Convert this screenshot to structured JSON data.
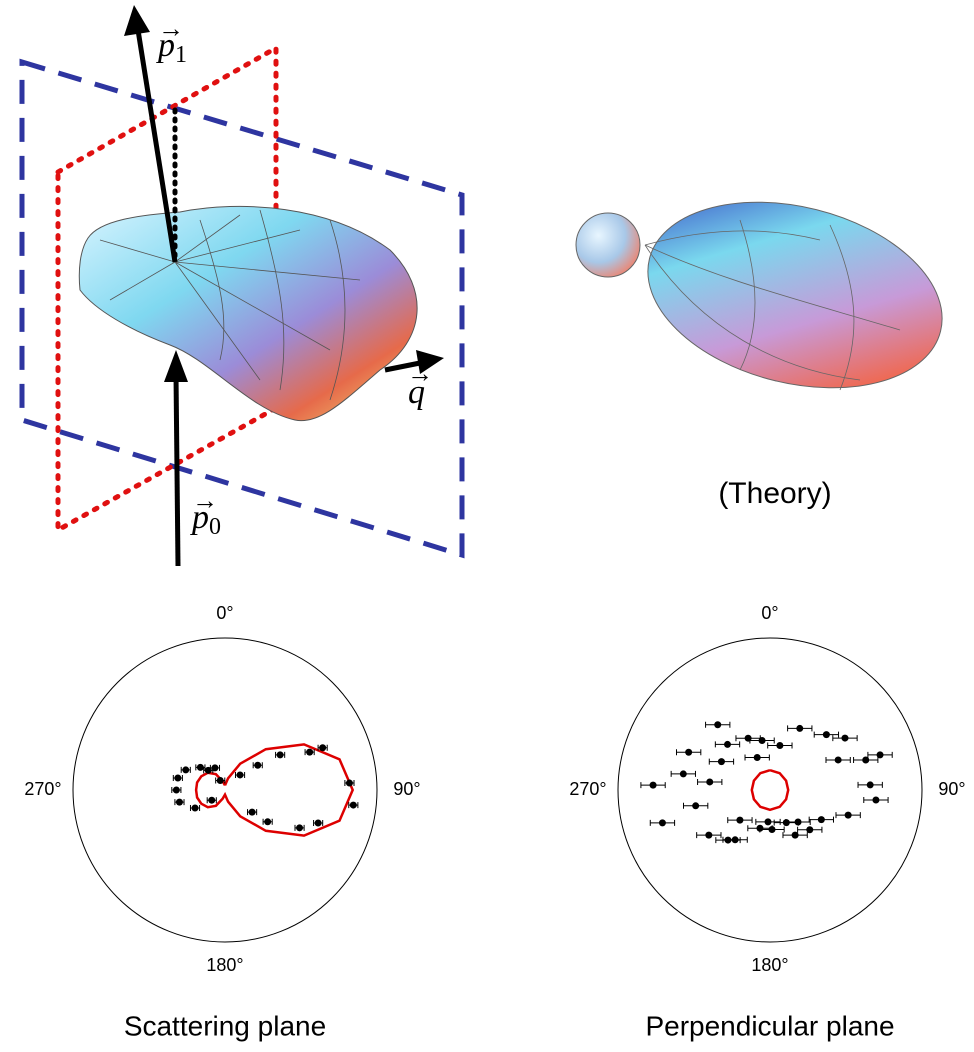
{
  "figure": {
    "p1": {
      "base": "p",
      "sub": "1"
    },
    "q": {
      "base": "q"
    },
    "p0": {
      "base": "p",
      "sub": "0"
    },
    "theory_label": "(Theory)"
  },
  "chart_data": [
    {
      "type": "polar",
      "title": "Scattering plane",
      "rlim": [
        0,
        1
      ],
      "angle_ticks": [
        {
          "value": 0,
          "label": "0°"
        },
        {
          "value": 90,
          "label": "90°"
        },
        {
          "value": 180,
          "label": "180°"
        },
        {
          "value": 270,
          "label": "270°"
        }
      ],
      "points": {
        "color": "#000000",
        "angles": [
          86.8,
          96.7,
          66.6,
          65.9,
          109.5,
          116.9,
          126.7,
          129.2,
          45,
          52.9,
          57.5,
          270,
          284.3,
          255.1,
          297.1,
          239.0,
          312.6,
          319.6,
          335.6,
          333.4,
          232.4
        ],
        "r": [
          0.82,
          0.85,
          0.7,
          0.61,
          0.65,
          0.55,
          0.35,
          0.23,
          0.14,
          0.27,
          0.43,
          0.32,
          0.32,
          0.31,
          0.29,
          0.23,
          0.22,
          0.17,
          0.16,
          0.07,
          0.11
        ],
        "err": [
          0.03,
          0.03,
          0.03,
          0.03,
          0.03,
          0.03,
          0.03,
          0.03,
          0.03,
          0.03,
          0.03,
          0.03,
          0.03,
          0.03,
          0.03,
          0.03,
          0.03,
          0.03,
          0.03,
          0.03,
          0.03
        ]
      },
      "theory": {
        "color": "#dd0000",
        "angles": [
          0,
          15,
          30,
          45,
          60,
          75,
          90,
          105,
          120,
          135,
          150,
          165,
          180,
          195,
          210,
          225,
          240,
          255,
          270,
          285,
          300,
          315,
          330,
          345,
          360
        ],
        "r": [
          0.03,
          0.08,
          0.2,
          0.38,
          0.6,
          0.78,
          0.84,
          0.78,
          0.6,
          0.38,
          0.2,
          0.08,
          0.03,
          0.06,
          0.12,
          0.16,
          0.18,
          0.19,
          0.19,
          0.19,
          0.18,
          0.16,
          0.12,
          0.06,
          0.03
        ]
      }
    },
    {
      "type": "polar",
      "title": "Perpendicular plane",
      "rlim": [
        0,
        1
      ],
      "angle_ticks": [
        {
          "value": 0,
          "label": "0°"
        },
        {
          "value": 90,
          "label": "90°"
        },
        {
          "value": 180,
          "label": "180°"
        },
        {
          "value": 270,
          "label": "270°"
        }
      ],
      "points": {
        "color": "#000000",
        "angles": [
          272.4,
          253.0,
          280.5,
          294.9,
          258.0,
          233.6,
          321.3,
          300.3,
          317.0,
          215.0,
          225,
          337.1,
          338.5,
          350.9,
          183.6,
          177.1,
          12.5,
          153.4,
          150.9,
          25.8,
          135,
          120.0,
          45.5,
          66.2,
          55.3,
          107.8,
          72.6,
          87.1,
          95.4,
          72.3,
          220.0,
          194.7,
          138.8,
          277.6
        ],
        "r": [
          0.77,
          0.74,
          0.58,
          0.59,
          0.5,
          0.5,
          0.55,
          0.37,
          0.41,
          0.4,
          0.28,
          0.37,
          0.23,
          0.33,
          0.21,
          0.26,
          0.3,
          0.24,
          0.34,
          0.45,
          0.37,
          0.39,
          0.52,
          0.49,
          0.6,
          0.54,
          0.66,
          0.66,
          0.7,
          0.76,
          0.43,
          0.26,
          0.28,
          0.4
        ],
        "err": [
          0.08,
          0.08,
          0.08,
          0.08,
          0.08,
          0.08,
          0.08,
          0.08,
          0.08,
          0.08,
          0.08,
          0.08,
          0.08,
          0.08,
          0.08,
          0.08,
          0.08,
          0.08,
          0.08,
          0.08,
          0.08,
          0.08,
          0.08,
          0.08,
          0.08,
          0.08,
          0.08,
          0.08,
          0.08,
          0.08,
          0.08,
          0.08,
          0.08,
          0.08
        ]
      },
      "theory": {
        "color": "#dd0000",
        "angles": [
          0,
          30,
          60,
          90,
          120,
          150,
          180,
          210,
          240,
          270,
          300,
          330,
          360
        ],
        "r": [
          0.13,
          0.128,
          0.122,
          0.12,
          0.122,
          0.128,
          0.13,
          0.128,
          0.122,
          0.12,
          0.122,
          0.128,
          0.13
        ]
      }
    }
  ]
}
